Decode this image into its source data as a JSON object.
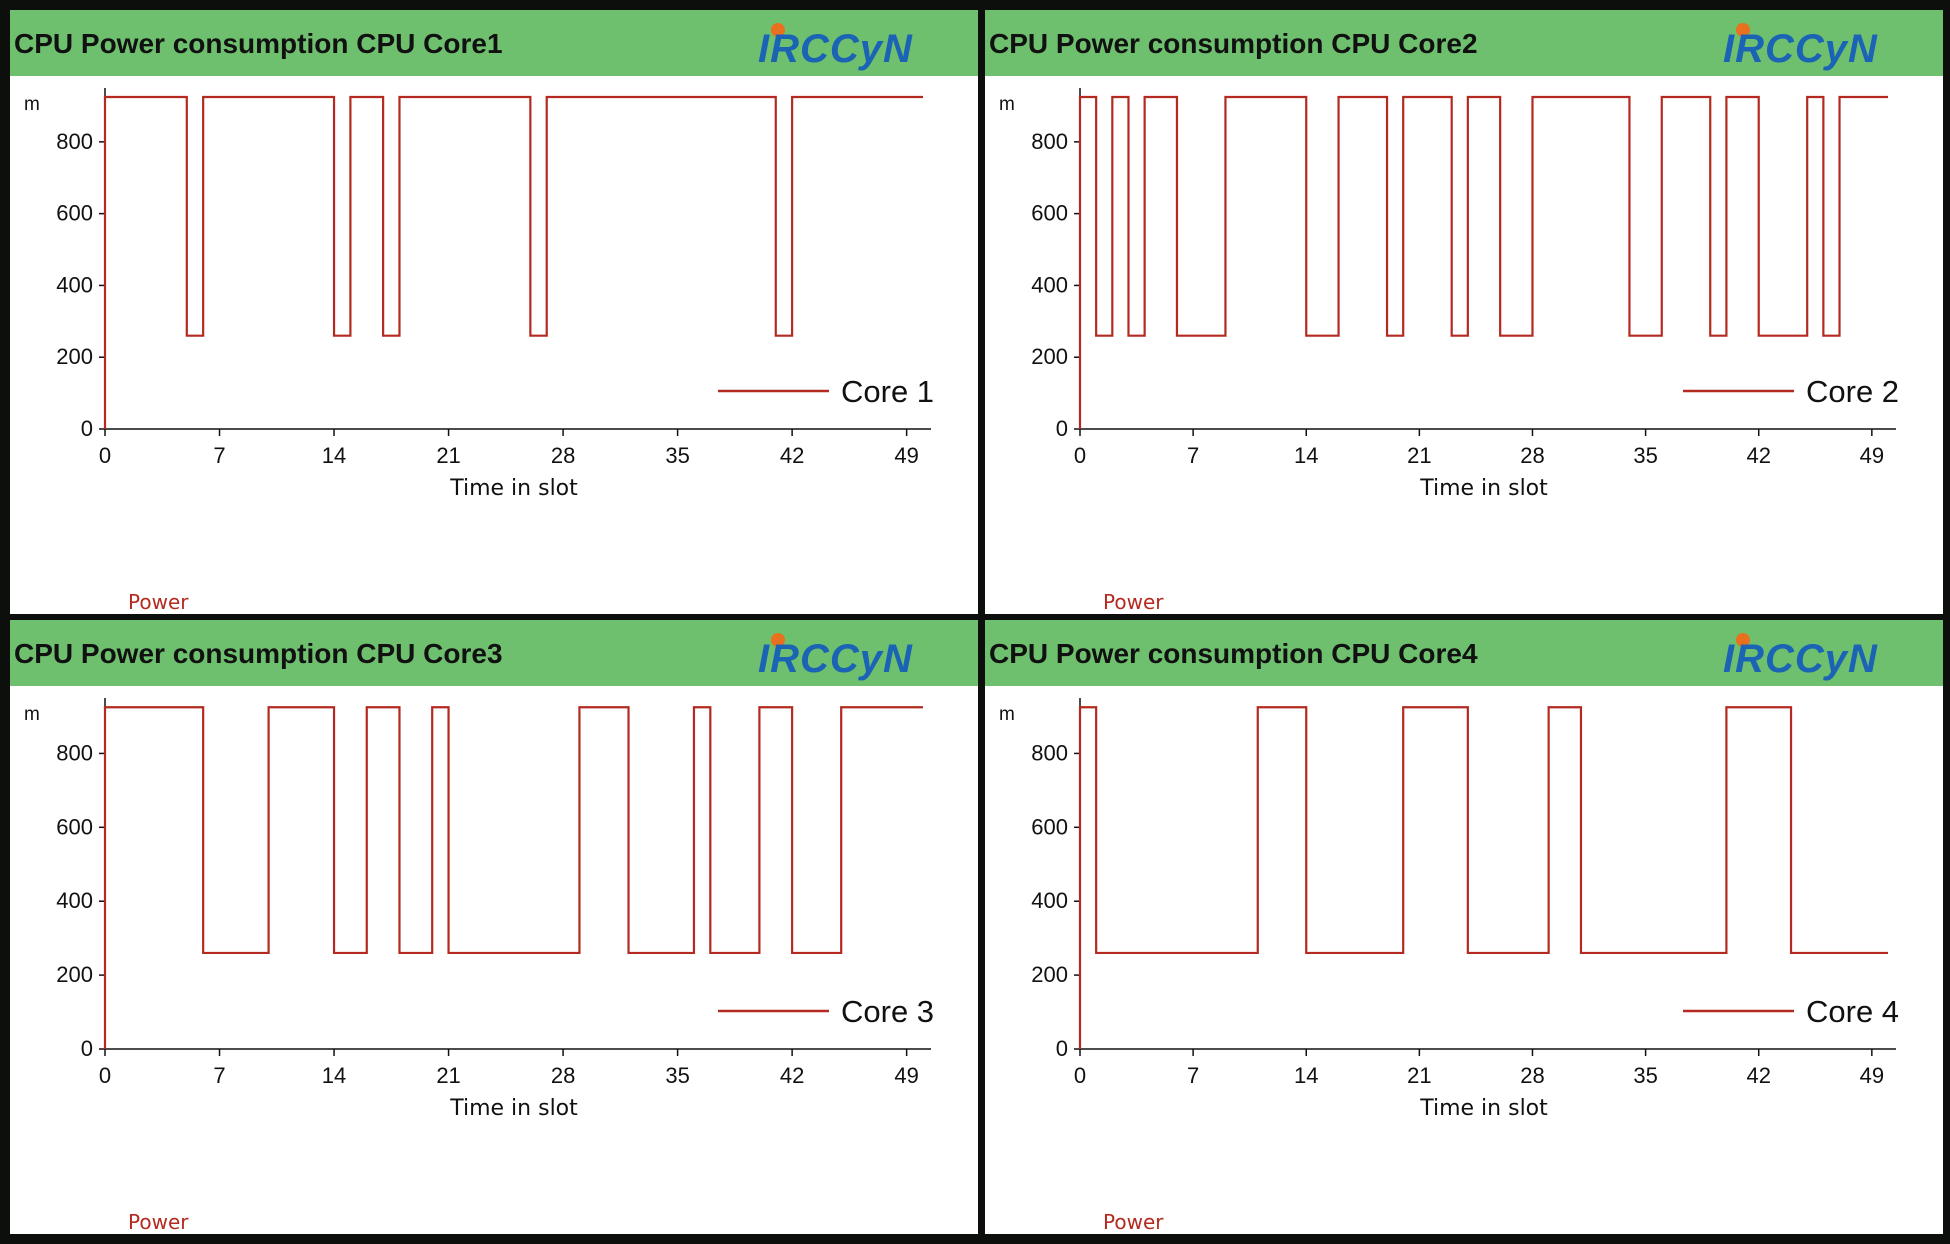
{
  "colors": {
    "header_bg": "#6ec06e",
    "series_line": "#b42a20",
    "power_label": "#b42a20",
    "logo_text": "#1a63b5",
    "logo_dot": "#e8701e"
  },
  "panels": [
    {
      "title": "CPU Power consumption  CPU Core1",
      "logo_text": "IRCCyN",
      "power_label": "Power",
      "y_unit": "m",
      "chart_data": {
        "type": "line",
        "title": "CPU Power consumption  CPU Core1",
        "xlabel": "Time in slot",
        "ylabel": "m",
        "xlim": [
          0,
          50
        ],
        "ylim": [
          0,
          950
        ],
        "xticks": [
          0,
          7,
          14,
          21,
          28,
          35,
          42,
          49
        ],
        "yticks": [
          0,
          200,
          400,
          600,
          800
        ],
        "legend": "bottom-right",
        "series": [
          {
            "name": "Core 1",
            "step": true,
            "values": [
              925,
              925,
              925,
              925,
              925,
              260,
              925,
              925,
              925,
              925,
              925,
              925,
              925,
              925,
              260,
              925,
              925,
              260,
              925,
              925,
              925,
              925,
              925,
              925,
              925,
              925,
              260,
              925,
              925,
              925,
              925,
              925,
              925,
              925,
              925,
              925,
              925,
              925,
              925,
              925,
              925,
              260,
              925,
              925,
              925,
              925,
              925,
              925,
              925,
              925
            ]
          }
        ]
      }
    },
    {
      "title": "CPU Power consumption  CPU Core2",
      "logo_text": "IRCCyN",
      "power_label": "Power",
      "y_unit": "m",
      "chart_data": {
        "type": "line",
        "title": "CPU Power consumption  CPU Core2",
        "xlabel": "Time in slot",
        "ylabel": "m",
        "xlim": [
          0,
          50
        ],
        "ylim": [
          0,
          950
        ],
        "xticks": [
          0,
          7,
          14,
          21,
          28,
          35,
          42,
          49
        ],
        "yticks": [
          0,
          200,
          400,
          600,
          800
        ],
        "legend": "bottom-right",
        "series": [
          {
            "name": "Core 2",
            "step": true,
            "values": [
              925,
              260,
              925,
              260,
              925,
              925,
              260,
              260,
              260,
              925,
              925,
              925,
              925,
              925,
              260,
              260,
              925,
              925,
              925,
              260,
              925,
              925,
              925,
              260,
              925,
              925,
              260,
              260,
              925,
              925,
              925,
              925,
              925,
              925,
              260,
              260,
              925,
              925,
              925,
              260,
              925,
              925,
              260,
              260,
              260,
              925,
              260,
              925,
              925,
              925
            ]
          }
        ]
      }
    },
    {
      "title": "CPU Power consumption  CPU Core3",
      "logo_text": "IRCCyN",
      "power_label": "Power",
      "y_unit": "m",
      "chart_data": {
        "type": "line",
        "title": "CPU Power consumption  CPU Core3",
        "xlabel": "Time in slot",
        "ylabel": "m",
        "xlim": [
          0,
          50
        ],
        "ylim": [
          0,
          950
        ],
        "xticks": [
          0,
          7,
          14,
          21,
          28,
          35,
          42,
          49
        ],
        "yticks": [
          0,
          200,
          400,
          600,
          800
        ],
        "legend": "bottom-right",
        "series": [
          {
            "name": "Core 3",
            "step": true,
            "values": [
              925,
              925,
              925,
              925,
              925,
              925,
              260,
              260,
              260,
              260,
              925,
              925,
              925,
              925,
              260,
              260,
              925,
              925,
              260,
              260,
              925,
              260,
              260,
              260,
              260,
              260,
              260,
              260,
              260,
              925,
              925,
              925,
              260,
              260,
              260,
              260,
              925,
              260,
              260,
              260,
              925,
              925,
              260,
              260,
              260,
              925,
              925,
              925,
              925,
              925
            ]
          }
        ]
      }
    },
    {
      "title": "CPU Power consumption  CPU Core4",
      "logo_text": "IRCCyN",
      "power_label": "Power",
      "y_unit": "m",
      "chart_data": {
        "type": "line",
        "title": "CPU Power consumption  CPU Core4",
        "xlabel": "Time in slot",
        "ylabel": "m",
        "xlim": [
          0,
          50
        ],
        "ylim": [
          0,
          950
        ],
        "xticks": [
          0,
          7,
          14,
          21,
          28,
          35,
          42,
          49
        ],
        "yticks": [
          0,
          200,
          400,
          600,
          800
        ],
        "legend": "bottom-right",
        "series": [
          {
            "name": "Core 4",
            "step": true,
            "values": [
              925,
              260,
              260,
              260,
              260,
              260,
              260,
              260,
              260,
              260,
              260,
              925,
              925,
              925,
              260,
              260,
              260,
              260,
              260,
              260,
              925,
              925,
              925,
              925,
              260,
              260,
              260,
              260,
              260,
              925,
              925,
              260,
              260,
              260,
              260,
              260,
              260,
              260,
              260,
              260,
              925,
              925,
              925,
              925,
              260,
              260,
              260,
              260,
              260,
              260
            ]
          }
        ]
      }
    }
  ]
}
